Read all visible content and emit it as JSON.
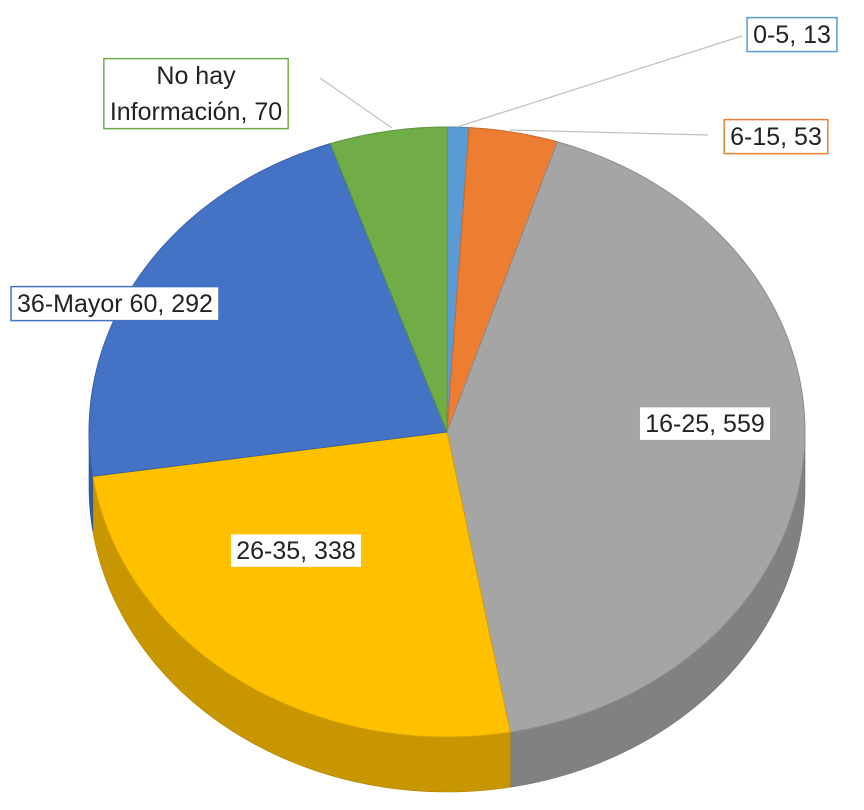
{
  "chart_data": {
    "type": "pie",
    "values": [
      13,
      53,
      559,
      338,
      292,
      70
    ],
    "value_labels": [
      "0-5, 13",
      "6-15, 53",
      "16-25, 559",
      "26-35, 338",
      "36-Mayor 60, 292",
      "No hay Información, 70"
    ],
    "colors": [
      "#5b9bd5",
      "#ed7d31",
      "#a5a5a5",
      "#ffc000",
      "#4472c4",
      "#70ad47"
    ],
    "three_d": true
  }
}
